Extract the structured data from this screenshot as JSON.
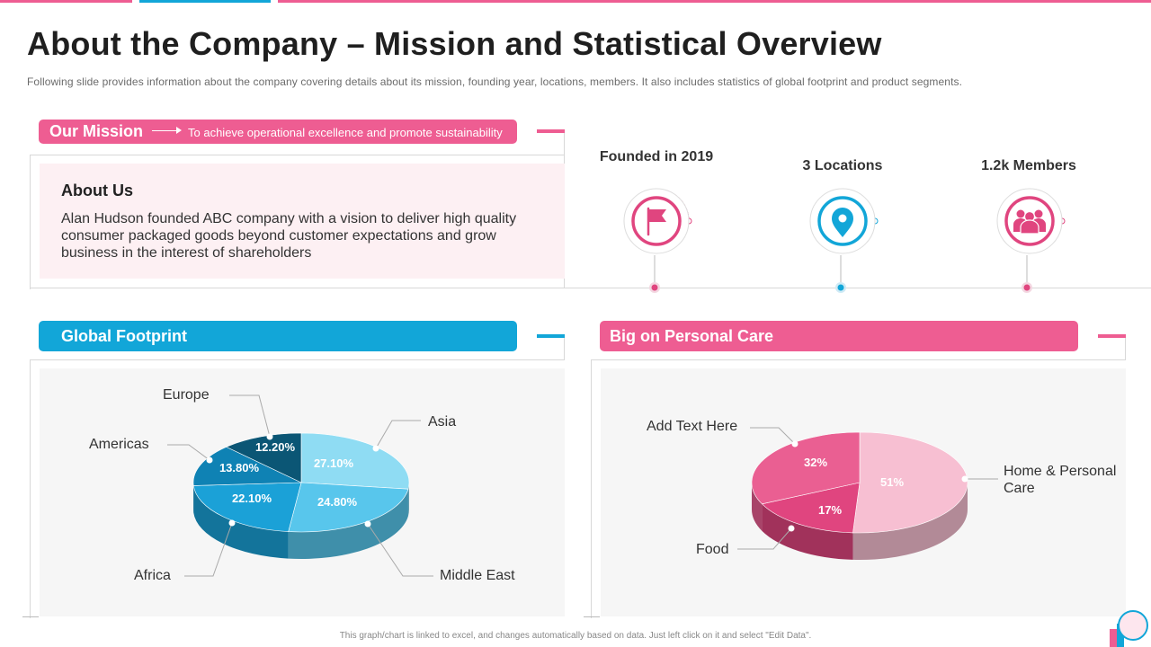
{
  "header": {
    "title": "About the Company – Mission and Statistical Overview",
    "subtitle": "Following slide provides  information  about  the  company  covering  details  about  its  mission, founding  year,  locations,  members.  It  also  includes  statistics of global footprint  and  product  segments."
  },
  "mission": {
    "label": "Our Mission",
    "text": "To achieve  operational  excellence  and  promote  sustainability"
  },
  "about": {
    "title": "About Us",
    "body": "Alan Hudson founded ABC company with a vision to deliver high quality consumer packaged goods beyond customer expectations and grow business in the interest of shareholders"
  },
  "stats": [
    {
      "label": "Founded in 2019",
      "icon": "flag-icon",
      "color": "#e0457f"
    },
    {
      "label": "3 Locations",
      "icon": "location-pin-icon",
      "color": "#12a6d8"
    },
    {
      "label": "1.2k Members",
      "icon": "members-icon",
      "color": "#e0457f"
    }
  ],
  "global_footprint": {
    "title": "Global Footprint"
  },
  "personal_care": {
    "title": "Big on Personal Care"
  },
  "footer": {
    "note": "This graph/chart is linked to excel, and changes automatically based on data. Just left click on it and select \"Edit Data\"."
  },
  "colors": {
    "pink": "#ee5d92",
    "blue": "#12a6d8"
  },
  "chart_data": [
    {
      "type": "pie",
      "title": "Global Footprint",
      "categories": [
        "Asia",
        "Middle East",
        "Africa",
        "Americas",
        "Europe"
      ],
      "values": [
        27.1,
        24.8,
        22.1,
        13.8,
        12.2
      ],
      "value_labels": [
        "27.10%",
        "24.80%",
        "22.10%",
        "13.80%",
        "12.20%"
      ]
    },
    {
      "type": "pie",
      "title": "Big on Personal Care",
      "categories": [
        "Home & Personal Care",
        "Food",
        "Add Text Here"
      ],
      "values": [
        51,
        17,
        32
      ],
      "value_labels": [
        "51%",
        "17%",
        "32%"
      ]
    }
  ]
}
